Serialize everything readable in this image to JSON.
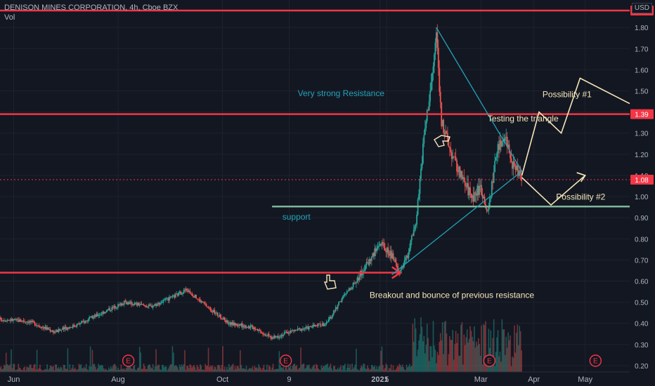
{
  "header": {
    "symbol_line": "DENISON MINES CORPORATION, 4h, Cboe BZX",
    "volume_label": "Vol",
    "currency": "USD"
  },
  "chart_data": {
    "type": "candlestick",
    "y_axis": {
      "ticks": [
        "0.20",
        "0.30",
        "0.40",
        "0.50",
        "0.60",
        "0.70",
        "0.80",
        "0.90",
        "1.00",
        "1.10",
        "1.20",
        "1.30",
        "1.40",
        "1.50",
        "1.60",
        "1.70",
        "1.80"
      ],
      "range": [
        0.17,
        1.93
      ],
      "side": "right",
      "grid": true
    },
    "x_axis": {
      "ticks": [
        "Jun",
        "Aug",
        "Oct",
        "9",
        "2021",
        "5",
        "Mar",
        "Apr",
        "May"
      ],
      "tick_dates": [
        "2020-06-01",
        "2020-08-01",
        "2020-10-01",
        "2020-11-09",
        "2021-01-01",
        "2021-01-05",
        "2021-03-01",
        "2021-04-01",
        "2021-05-01"
      ],
      "range": [
        "2020-05-24",
        "2021-05-27"
      ]
    },
    "price_labels": [
      {
        "value": 1.88,
        "text": "1.88",
        "color": "#f23645"
      },
      {
        "value": 1.39,
        "text": "1.39",
        "color": "#f23645"
      },
      {
        "value": 1.08,
        "text": "1.08",
        "color": "#f23645"
      }
    ],
    "horizontal_lines": [
      {
        "value": 1.88,
        "color": "#f23645",
        "from": "2020-05-24",
        "to": "2021-05-27"
      },
      {
        "value": 1.39,
        "color": "#f23645",
        "from": "2020-05-24",
        "to": "2021-05-27"
      },
      {
        "value": 0.953,
        "color": "#7fb59a",
        "from": "2020-10-30",
        "to": "2021-05-27"
      },
      {
        "value": 1.08,
        "color": "#f23645",
        "dashed": true,
        "from": "2020-05-24",
        "to": "2021-05-27"
      }
    ],
    "support_arrow": {
      "value": 0.64,
      "from": "2020-05-24",
      "to": "2021-01-13",
      "color": "#f23645"
    },
    "triangle": {
      "apex_top": {
        "date": "2021-02-03",
        "price": 1.8
      },
      "apex_bottom": {
        "date": "2021-01-08",
        "price": 0.63
      },
      "tip": {
        "date": "2021-03-25",
        "price": 1.12
      },
      "color": "#22a4b8"
    },
    "projection_1": {
      "points": [
        [
          "2021-03-25",
          1.1
        ],
        [
          "2021-04-04",
          1.4
        ],
        [
          "2021-04-17",
          1.3
        ],
        [
          "2021-04-28",
          1.56
        ],
        [
          "2021-05-27",
          1.44
        ]
      ],
      "color": "#f5e6b8"
    },
    "projection_2": {
      "points": [
        [
          "2021-03-25",
          1.09
        ],
        [
          "2021-04-11",
          0.96
        ],
        [
          "2021-05-01",
          1.1
        ]
      ],
      "color": "#f5e6b8"
    },
    "series_approx": [
      [
        "2020-05-24",
        0.42
      ],
      [
        "2020-06-10",
        0.41
      ],
      [
        "2020-06-25",
        0.36
      ],
      [
        "2020-07-10",
        0.4
      ],
      [
        "2020-07-25",
        0.46
      ],
      [
        "2020-08-05",
        0.5
      ],
      [
        "2020-08-20",
        0.48
      ],
      [
        "2020-09-01",
        0.52
      ],
      [
        "2020-09-10",
        0.56
      ],
      [
        "2020-09-25",
        0.46
      ],
      [
        "2020-10-05",
        0.4
      ],
      [
        "2020-10-20",
        0.38
      ],
      [
        "2020-10-30",
        0.33
      ],
      [
        "2020-11-09",
        0.36
      ],
      [
        "2020-11-20",
        0.38
      ],
      [
        "2020-12-01",
        0.4
      ],
      [
        "2020-12-10",
        0.52
      ],
      [
        "2020-12-18",
        0.6
      ],
      [
        "2020-12-26",
        0.7
      ],
      [
        "2021-01-01",
        0.78
      ],
      [
        "2021-01-08",
        0.72
      ],
      [
        "2021-01-12",
        0.64
      ],
      [
        "2021-01-17",
        0.72
      ],
      [
        "2021-01-22",
        0.88
      ],
      [
        "2021-01-27",
        1.3
      ],
      [
        "2021-02-01",
        1.6
      ],
      [
        "2021-02-03",
        1.78
      ],
      [
        "2021-02-06",
        1.35
      ],
      [
        "2021-02-12",
        1.2
      ],
      [
        "2021-02-18",
        1.08
      ],
      [
        "2021-02-24",
        1.0
      ],
      [
        "2021-03-01",
        1.05
      ],
      [
        "2021-03-05",
        0.92
      ],
      [
        "2021-03-10",
        1.2
      ],
      [
        "2021-03-15",
        1.3
      ],
      [
        "2021-03-20",
        1.14
      ],
      [
        "2021-03-25",
        1.08
      ]
    ],
    "earnings_markers": [
      {
        "date": "2020-08-07",
        "label": "E"
      },
      {
        "date": "2020-11-07",
        "label": "E"
      },
      {
        "date": "2021-03-06",
        "label": "E"
      },
      {
        "date": "2021-05-07",
        "label": "E"
      }
    ],
    "annotations": [
      {
        "text": "Very strong Resistance",
        "date": "2020-11-14",
        "price": 1.475,
        "color": "#22a4b8"
      },
      {
        "text": "support",
        "date": "2020-11-05",
        "price": 0.89,
        "color": "#22a4b8"
      },
      {
        "text": "Testing the triangle",
        "date": "2021-03-05",
        "price": 1.355,
        "color": "#f5e6b8"
      },
      {
        "text": "Possibility #1",
        "date": "2021-04-06",
        "price": 1.47,
        "color": "#f5e6b8"
      },
      {
        "text": "Possibility #2",
        "date": "2021-04-14",
        "price": 0.985,
        "color": "#f5e6b8"
      },
      {
        "text": "Breakout and bounce of previous resistance",
        "date": "2020-12-26",
        "price": 0.52,
        "color": "#f5e6b8"
      }
    ]
  }
}
